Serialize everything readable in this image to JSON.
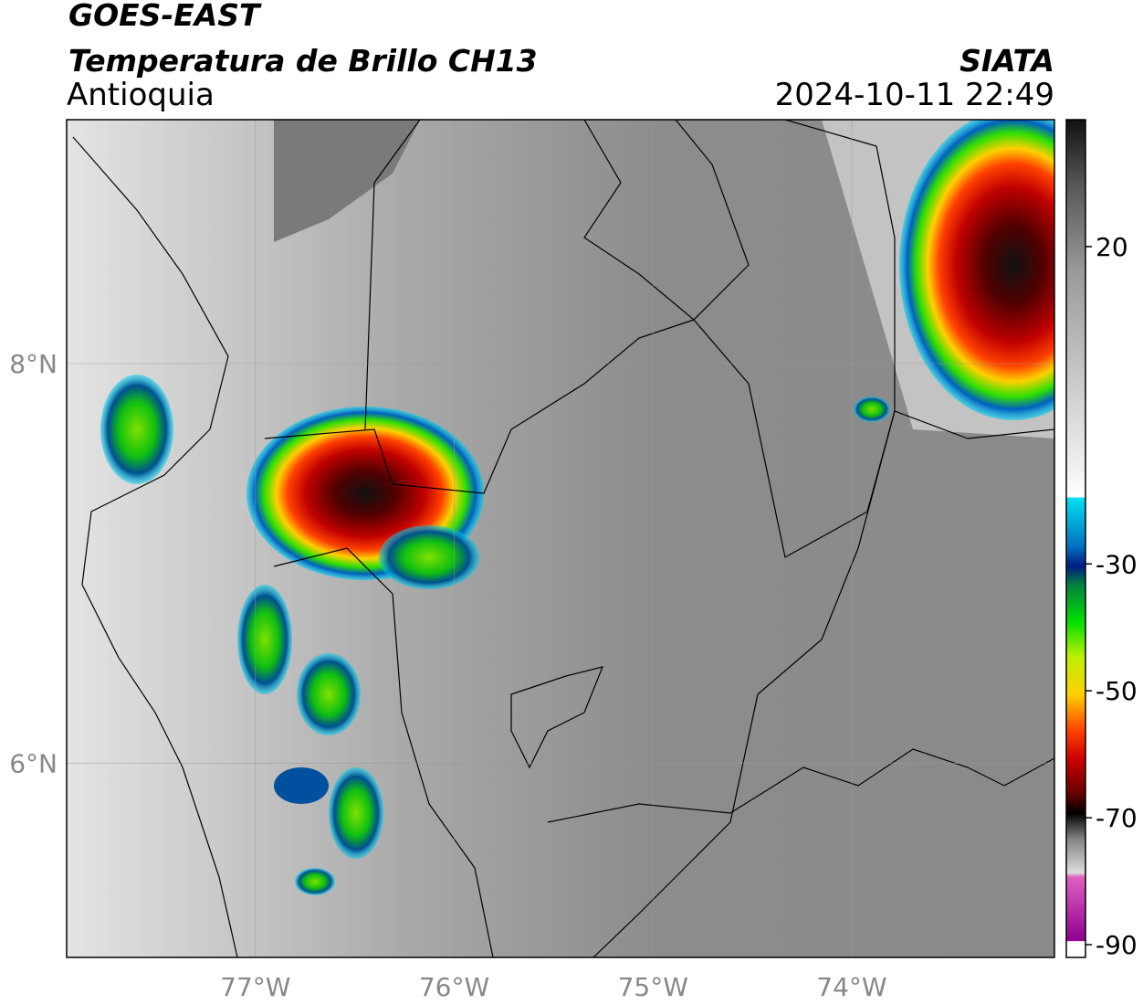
{
  "header": {
    "title": "GOES-EAST",
    "subtitle": "Temperatura de Brillo CH13",
    "region": "Antioquia",
    "source": "SIATA",
    "datetime": "2024-10-11 22:49"
  },
  "map": {
    "xlim": [
      -77.95,
      -72.98
    ],
    "ylim": [
      5.03,
      9.22
    ],
    "xticks": [
      {
        "value": -77,
        "label": "77°W"
      },
      {
        "value": -76,
        "label": "76°W"
      },
      {
        "value": -75,
        "label": "75°W"
      },
      {
        "value": -74,
        "label": "74°W"
      }
    ],
    "yticks": [
      {
        "value": 8,
        "label": "8°N"
      },
      {
        "value": 6,
        "label": "6°N"
      }
    ],
    "grid": true
  },
  "colorbar": {
    "lim": [
      -92,
      40
    ],
    "ticks": [
      20,
      -30,
      -50,
      -70,
      -90
    ]
  }
}
